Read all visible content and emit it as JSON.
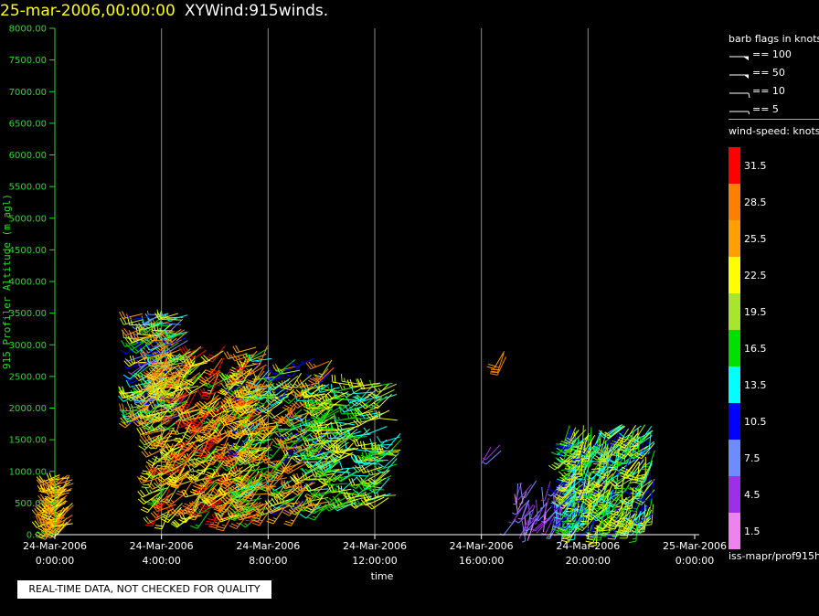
{
  "title": {
    "date": "25-mar-2006,00:00:00",
    "name": "XYWind:915winds."
  },
  "qc_note": "REAL-TIME DATA, NOT CHECKED FOR QUALITY",
  "legend": {
    "barb_title": "barb flags in knots",
    "flags": [
      {
        "label": "== 100",
        "kind": "pennant-100"
      },
      {
        "label": "== 50",
        "kind": "pennant-50"
      },
      {
        "label": "== 10",
        "kind": "full-barb"
      },
      {
        "label": "== 5",
        "kind": "half-barb"
      }
    ],
    "speed_title": "wind-speed: knots",
    "color_bins": [
      {
        "label": "31.5",
        "color": "#ff0000"
      },
      {
        "label": "28.5",
        "color": "#ff7f00"
      },
      {
        "label": "25.5",
        "color": "#ffa000"
      },
      {
        "label": "22.5",
        "color": "#ffff00"
      },
      {
        "label": "19.5",
        "color": "#a8e62e"
      },
      {
        "label": "16.5",
        "color": "#00e000"
      },
      {
        "label": "13.5",
        "color": "#00ffff"
      },
      {
        "label": "10.5",
        "color": "#0000ff"
      },
      {
        "label": "7.5",
        "color": "#6c8cff"
      },
      {
        "label": "4.5",
        "color": "#9b30e6"
      },
      {
        "label": "1.5",
        "color": "#ee82ee"
      }
    ],
    "source": "iss-mapr/prof915h"
  },
  "chart_data": {
    "type": "scatter",
    "glyph": "wind-barb",
    "xlabel": "time",
    "ylabel": "915 Profiler Altitude (m agl)",
    "x_range_hours": [
      0,
      24
    ],
    "ylim": [
      0,
      8000
    ],
    "x_ticks": [
      {
        "hours": 0,
        "date": "24-Mar-2006",
        "time": "0:00:00"
      },
      {
        "hours": 4,
        "date": "24-Mar-2006",
        "time": "4:00:00"
      },
      {
        "hours": 8,
        "date": "24-Mar-2006",
        "time": "8:00:00"
      },
      {
        "hours": 12,
        "date": "24-Mar-2006",
        "time": "12:00:00"
      },
      {
        "hours": 16,
        "date": "24-Mar-2006",
        "time": "16:00:00"
      },
      {
        "hours": 20,
        "date": "24-Mar-2006",
        "time": "20:00:00"
      },
      {
        "hours": 24,
        "date": "25-Mar-2006",
        "time": "0:00:00"
      }
    ],
    "y_ticks": [
      "0.00",
      "500.00",
      "1000.00",
      "1500.00",
      "2000.00",
      "2500.00",
      "3000.00",
      "3500.00",
      "4000.00",
      "4500.00",
      "5000.00",
      "5500.00",
      "6000.00",
      "6500.00",
      "7000.00",
      "7500.00",
      "8000.00"
    ],
    "gridlines": "vertical at each time tick",
    "clusters": [
      {
        "t0": 0.0,
        "t1": 0.7,
        "h0": 150,
        "h1": 950,
        "speed_min": 22,
        "speed_max": 28,
        "dir": 235,
        "count": 60
      },
      {
        "t0": 3.2,
        "t1": 5.0,
        "h0": 1800,
        "h1": 3500,
        "speed_min": 5,
        "speed_max": 30,
        "dir": 250,
        "count": 180
      },
      {
        "t0": 3.8,
        "t1": 8.0,
        "h0": 300,
        "h1": 3000,
        "speed_min": 17,
        "speed_max": 32,
        "dir": 230,
        "count": 420
      },
      {
        "t0": 7.0,
        "t1": 10.5,
        "h0": 400,
        "h1": 2800,
        "speed_min": 10,
        "speed_max": 30,
        "dir": 240,
        "count": 280
      },
      {
        "t0": 10.0,
        "t1": 13.0,
        "h0": 500,
        "h1": 2400,
        "speed_min": 12,
        "speed_max": 24,
        "dir": 250,
        "count": 220
      },
      {
        "t0": 16.7,
        "t1": 17.0,
        "h0": 2800,
        "h1": 2900,
        "speed_min": 24,
        "speed_max": 28,
        "dir": 220,
        "count": 3
      },
      {
        "t0": 16.0,
        "t1": 16.8,
        "h0": 1300,
        "h1": 1600,
        "speed_min": 4,
        "speed_max": 8,
        "dir": 200,
        "count": 3
      },
      {
        "t0": 17.2,
        "t1": 19.5,
        "h0": 200,
        "h1": 900,
        "speed_min": 2,
        "speed_max": 9,
        "dir": 200,
        "count": 70
      },
      {
        "t0": 19.3,
        "t1": 22.5,
        "h0": 150,
        "h1": 1750,
        "speed_min": 10,
        "speed_max": 24,
        "dir": 210,
        "count": 380
      }
    ]
  }
}
